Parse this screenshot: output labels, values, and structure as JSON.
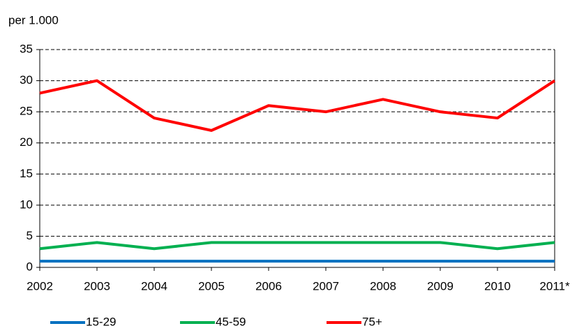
{
  "chart_data": {
    "type": "line",
    "y_axis_label": "per 1.000",
    "categories": [
      "2002",
      "2003",
      "2004",
      "2005",
      "2006",
      "2007",
      "2008",
      "2009",
      "2010",
      "2011*"
    ],
    "series": [
      {
        "name": "15-29",
        "color": "#0070c0",
        "values": [
          1,
          1,
          1,
          1,
          1,
          1,
          1,
          1,
          1,
          1
        ]
      },
      {
        "name": "45-59",
        "color": "#00b050",
        "values": [
          3,
          4,
          3,
          4,
          4,
          4,
          4,
          4,
          3,
          4
        ]
      },
      {
        "name": "75+",
        "color": "#ff0000",
        "values": [
          28,
          30,
          24,
          22,
          26,
          25,
          27,
          25,
          24,
          30
        ]
      }
    ],
    "ylim": [
      0,
      35
    ],
    "yticks": [
      0,
      5,
      10,
      15,
      20,
      25,
      30,
      35
    ],
    "grid": true
  }
}
